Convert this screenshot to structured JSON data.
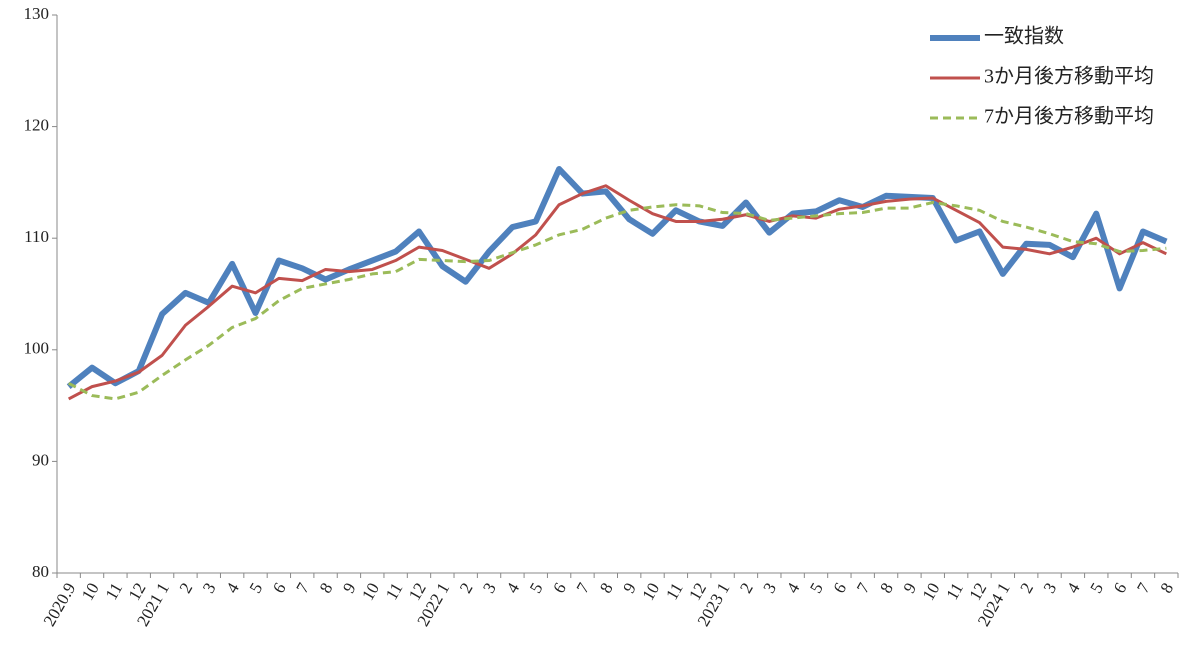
{
  "chart_data": {
    "type": "line",
    "categories": [
      "2020.9",
      "10",
      "11",
      "12",
      "2021 1",
      "2",
      "3",
      "4",
      "5",
      "6",
      "7",
      "8",
      "9",
      "10",
      "11",
      "12",
      "2022 1",
      "2",
      "3",
      "4",
      "5",
      "6",
      "7",
      "8",
      "9",
      "10",
      "11",
      "12",
      "2023 1",
      "2",
      "3",
      "4",
      "5",
      "6",
      "7",
      "8",
      "9",
      "10",
      "11",
      "12",
      "2024 1",
      "2",
      "3",
      "4",
      "5",
      "6",
      "7",
      "8"
    ],
    "series": [
      {
        "name": "一致指数",
        "color": "#4f81bd",
        "dash": "solid",
        "values": [
          96.7,
          98.4,
          97.0,
          98.1,
          103.2,
          105.1,
          104.2,
          107.7,
          103.3,
          108.0,
          107.3,
          106.3,
          107.2,
          108.0,
          108.8,
          110.6,
          107.5,
          106.1,
          108.8,
          111.0,
          111.5,
          116.2,
          114.0,
          114.2,
          111.7,
          110.4,
          112.5,
          111.5,
          111.1,
          113.2,
          110.5,
          112.2,
          112.4,
          113.4,
          112.8,
          113.8,
          113.7,
          113.6,
          109.8,
          110.6,
          106.8,
          109.5,
          109.4,
          108.3,
          112.2,
          105.5,
          110.6,
          109.7
        ]
      },
      {
        "name": "3か月後方移動平均",
        "color": "#c0504d",
        "dash": "solid",
        "values": [
          95.6,
          96.7,
          97.2,
          98.0,
          99.5,
          102.2,
          103.9,
          105.7,
          105.1,
          106.4,
          106.2,
          107.2,
          107.0,
          107.2,
          108.0,
          109.2,
          108.9,
          108.1,
          107.3,
          108.6,
          110.3,
          113.0,
          114.0,
          114.7,
          113.4,
          112.2,
          111.5,
          111.5,
          111.7,
          112.1,
          111.5,
          112.0,
          111.8,
          112.6,
          112.9,
          113.3,
          113.5,
          113.6,
          112.5,
          111.4,
          109.2,
          109.0,
          108.6,
          109.2,
          110.0,
          108.6,
          109.6,
          108.6
        ]
      },
      {
        "name": "7か月後方移動平均",
        "color": "#9bbb59",
        "dash": "dashed",
        "values": [
          97.0,
          95.9,
          95.6,
          96.2,
          97.7,
          99.1,
          100.4,
          102.0,
          102.8,
          104.4,
          105.5,
          105.9,
          106.3,
          106.8,
          107.0,
          108.1,
          108.0,
          107.9,
          108.0,
          108.7,
          109.4,
          110.3,
          110.8,
          111.8,
          112.5,
          112.8,
          113.0,
          112.9,
          112.3,
          112.2,
          111.6,
          111.8,
          112.0,
          112.2,
          112.3,
          112.7,
          112.7,
          113.2,
          112.9,
          112.5,
          111.5,
          111.0,
          110.4,
          109.7,
          109.5,
          108.8,
          108.9,
          109.1
        ]
      }
    ],
    "ylim": [
      80,
      130
    ],
    "yticks": [
      80,
      90,
      100,
      110,
      120,
      130
    ],
    "grid": false,
    "legend": "top-right"
  }
}
